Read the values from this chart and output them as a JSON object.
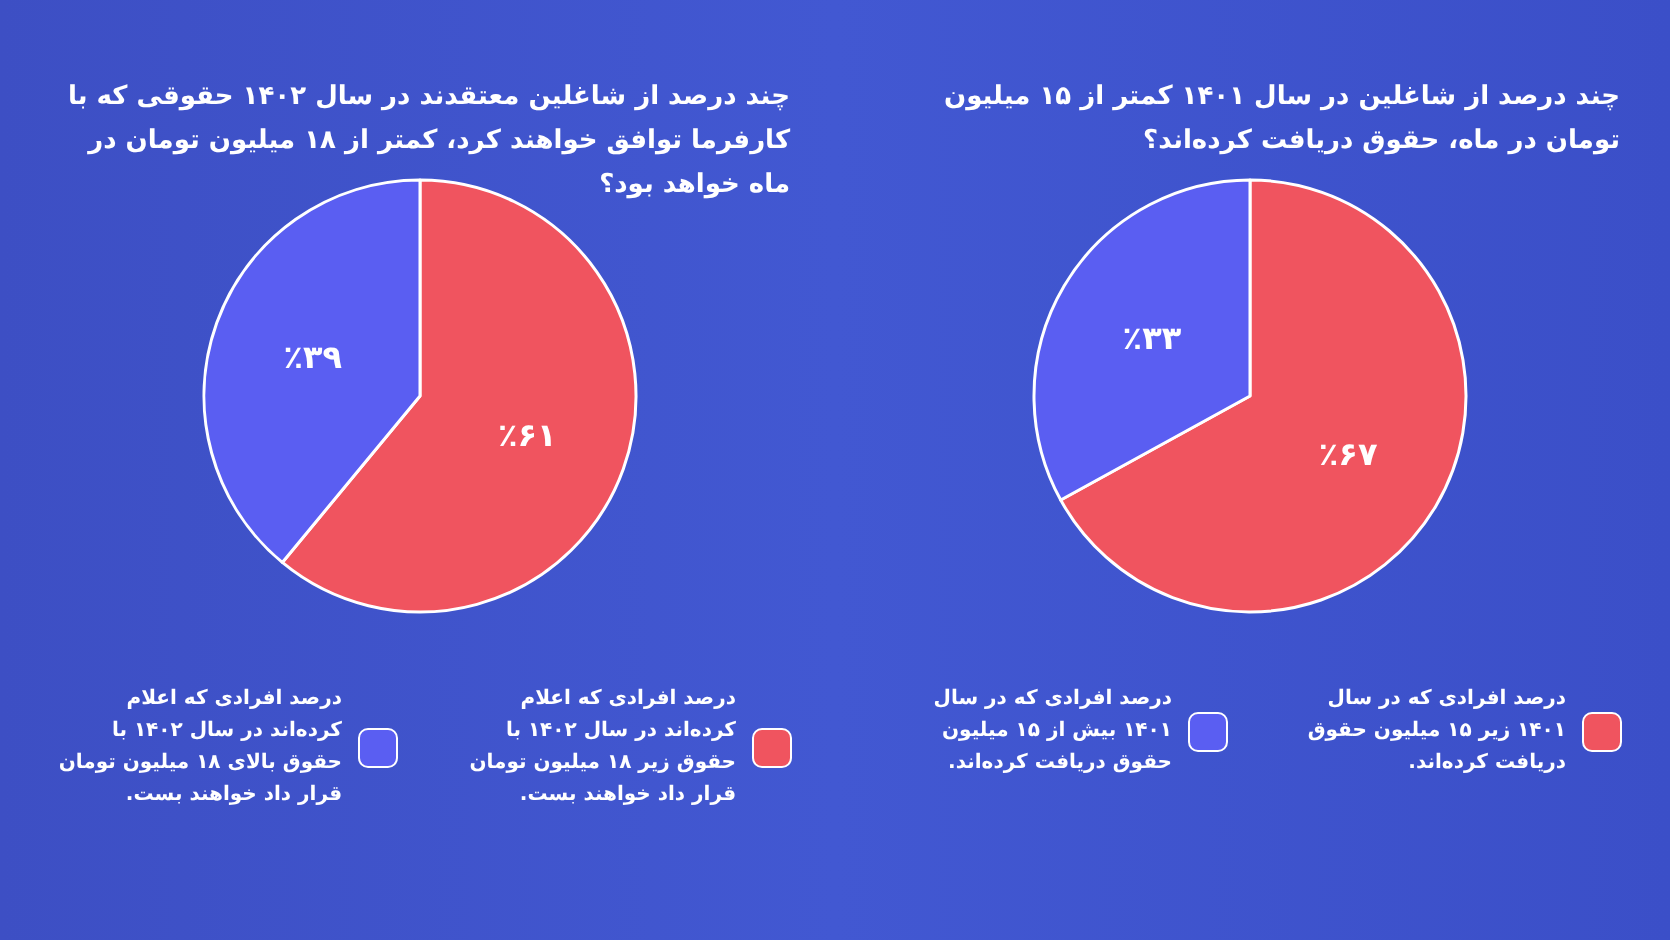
{
  "chart_data": [
    {
      "type": "pie",
      "title": "چند درصد از شاغلین در سال ۱۴۰۱ کمتر از ۱۵ میلیون تومان در ماه، حقوق دریافت کرده‌اند؟",
      "categories": [
        "درصد  افرادی که  در سال ۱۴۰۱ زیر ۱۵ میلیون حقوق دریافت کرده‌اند.",
        "درصد  افرادی که  در سال ۱۴۰۱ بیش از ۱۵ میلیون حقوق دریافت کرده‌اند."
      ],
      "values": [
        67,
        33
      ],
      "value_labels": [
        "٪۶۷",
        "٪۳۳"
      ],
      "colors": [
        "#f0545f",
        "#5a5ef2"
      ],
      "legend": "bottom"
    },
    {
      "type": "pie",
      "title": "چند درصد از شاغلین معتقدند در سال ۱۴۰۲ حقوقی که با کارفرما توافق خواهند کرد، کمتر از ۱۸ میلیون تومان در ماه خواهد بود؟",
      "categories": [
        "درصد افرادی که اعلام کرده‌اند در سال ۱۴۰۲ با حقوق زیر ۱۸ میلیون تومان قرار داد خواهند بست.",
        "درصد افرادی که اعلام کرده‌اند در سال ۱۴۰۲ با حقوق بالای ۱۸ میلیون تومان قرار داد خواهند بست."
      ],
      "values": [
        61,
        39
      ],
      "value_labels": [
        "٪۶۱",
        "٪۳۹"
      ],
      "colors": [
        "#f0545f",
        "#5a5ef2"
      ],
      "legend": "bottom"
    }
  ]
}
